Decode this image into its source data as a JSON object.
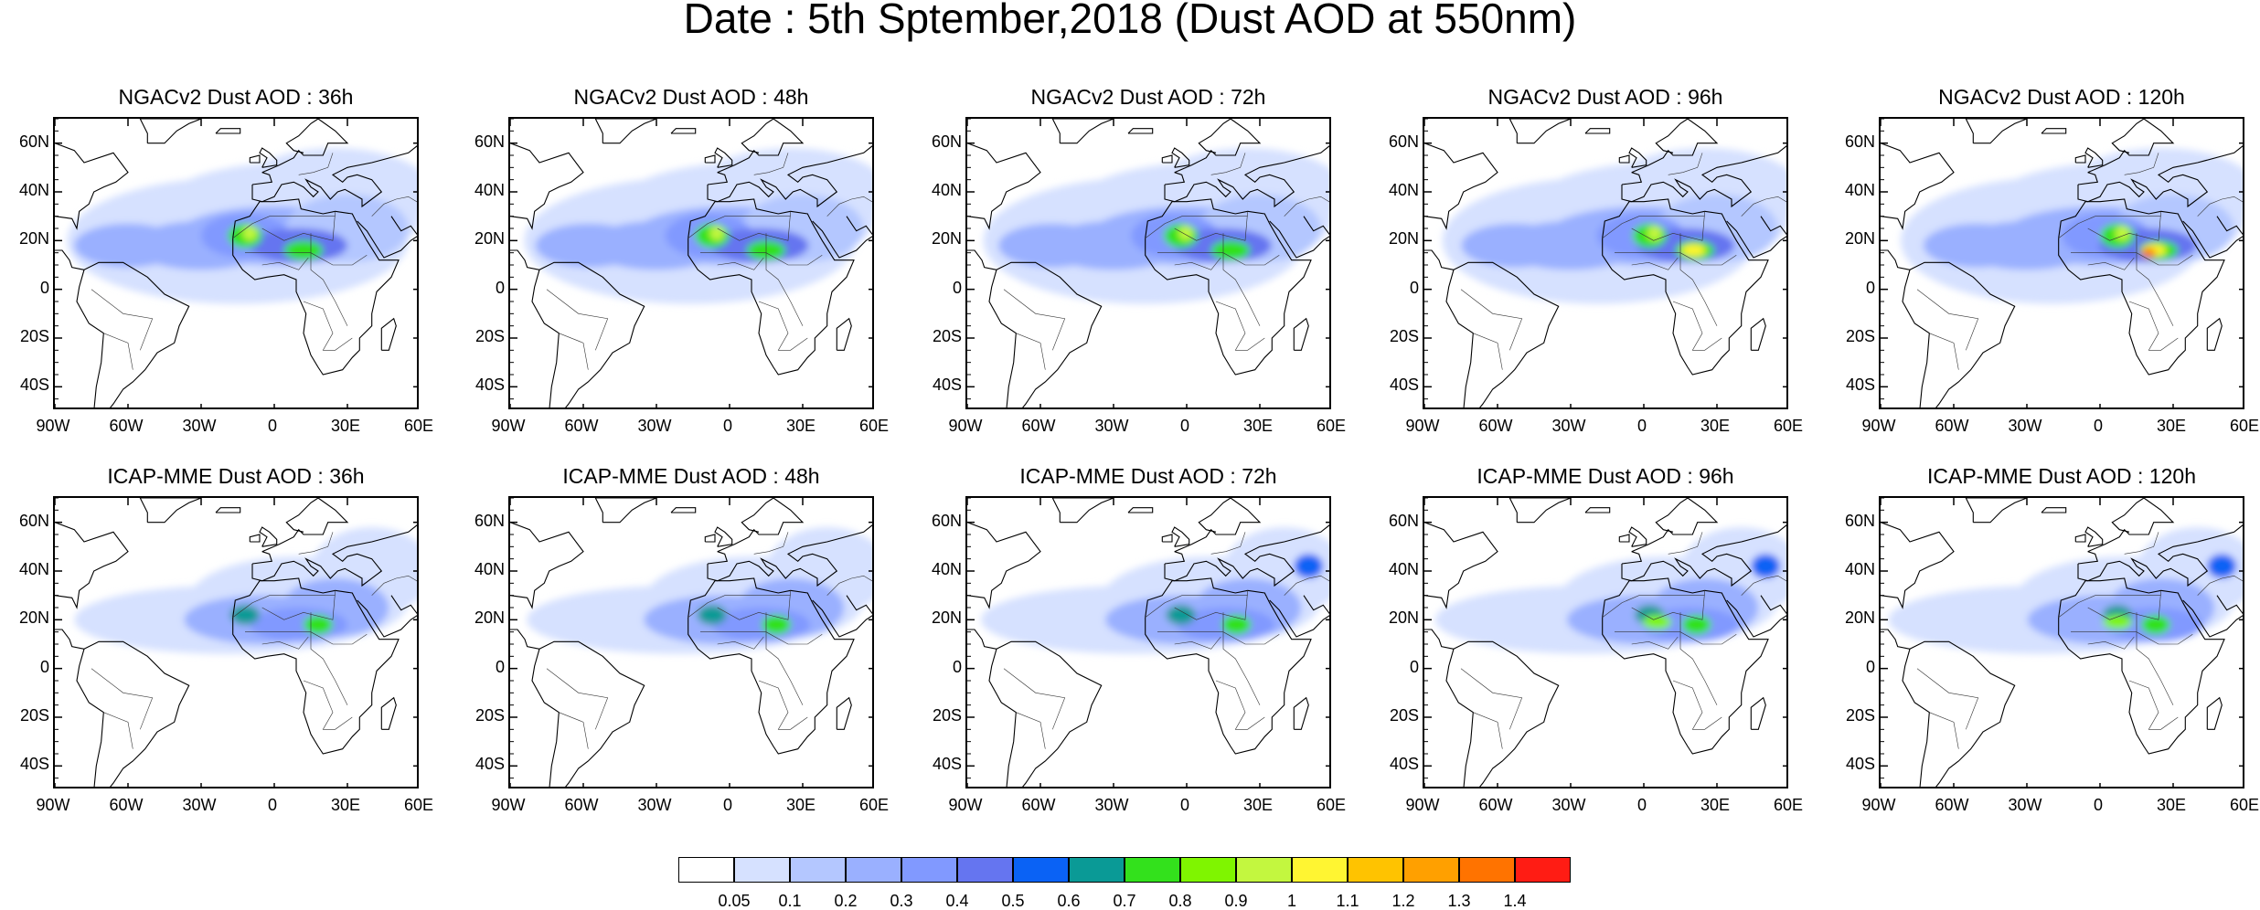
{
  "title": "Date : 5th Sptember,2018 (Dust AOD at 550nm)",
  "lat_labels": [
    "60N",
    "40N",
    "20N",
    "0",
    "20S",
    "40S"
  ],
  "lon_labels": [
    "90W",
    "60W",
    "30W",
    "0",
    "30E",
    "60E"
  ],
  "panels": [
    {
      "title": "NGACv2 Dust AOD : 36h",
      "row": 0,
      "col": 0
    },
    {
      "title": "NGACv2 Dust AOD : 48h",
      "row": 0,
      "col": 1
    },
    {
      "title": "NGACv2 Dust AOD : 72h",
      "row": 0,
      "col": 2
    },
    {
      "title": "NGACv2 Dust AOD : 96h",
      "row": 0,
      "col": 3
    },
    {
      "title": "NGACv2 Dust AOD : 120h",
      "row": 0,
      "col": 4
    },
    {
      "title": "ICAP-MME Dust AOD : 36h",
      "row": 1,
      "col": 0
    },
    {
      "title": "ICAP-MME Dust AOD : 48h",
      "row": 1,
      "col": 1
    },
    {
      "title": "ICAP-MME Dust AOD : 72h",
      "row": 1,
      "col": 2
    },
    {
      "title": "ICAP-MME Dust AOD : 96h",
      "row": 1,
      "col": 3
    },
    {
      "title": "ICAP-MME Dust AOD : 120h",
      "row": 1,
      "col": 4
    }
  ],
  "colorbar": {
    "labels": [
      "0.05",
      "0.1",
      "0.2",
      "0.3",
      "0.4",
      "0.5",
      "0.6",
      "0.7",
      "0.8",
      "0.9",
      "1",
      "1.1",
      "1.2",
      "1.3",
      "1.4"
    ],
    "colors": [
      "#ffffff",
      "#d6e1ff",
      "#b4c7ff",
      "#9ab0ff",
      "#8199ff",
      "#6575f0",
      "#0a62f5",
      "#0a9a96",
      "#33e11c",
      "#7ff500",
      "#c3f73f",
      "#fff532",
      "#ffc300",
      "#ffa000",
      "#ff7300",
      "#ff1c14"
    ]
  }
}
